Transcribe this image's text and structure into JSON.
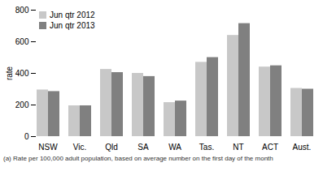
{
  "chart_data": {
    "type": "bar",
    "categories": [
      "NSW",
      "Vic.",
      "Qld",
      "SA",
      "WA",
      "Tas.",
      "NT",
      "ACT",
      "Aust."
    ],
    "series": [
      {
        "name": "Jun qtr 2012",
        "color": "#c8c8c8",
        "values": [
          295,
          195,
          425,
          400,
          215,
          470,
          640,
          440,
          305
        ]
      },
      {
        "name": "Jun qtr 2013",
        "color": "#808080",
        "values": [
          285,
          195,
          405,
          380,
          225,
          500,
          715,
          448,
          300
        ]
      }
    ],
    "ylabel": "rate",
    "ylim": [
      0,
      800
    ],
    "yticks": [
      0,
      200,
      400,
      600,
      800
    ],
    "grid": false,
    "legend": "upper left",
    "annotations": [
      "(a) Rate per 100,000 adult population, based on average number on the first day of the month"
    ]
  }
}
